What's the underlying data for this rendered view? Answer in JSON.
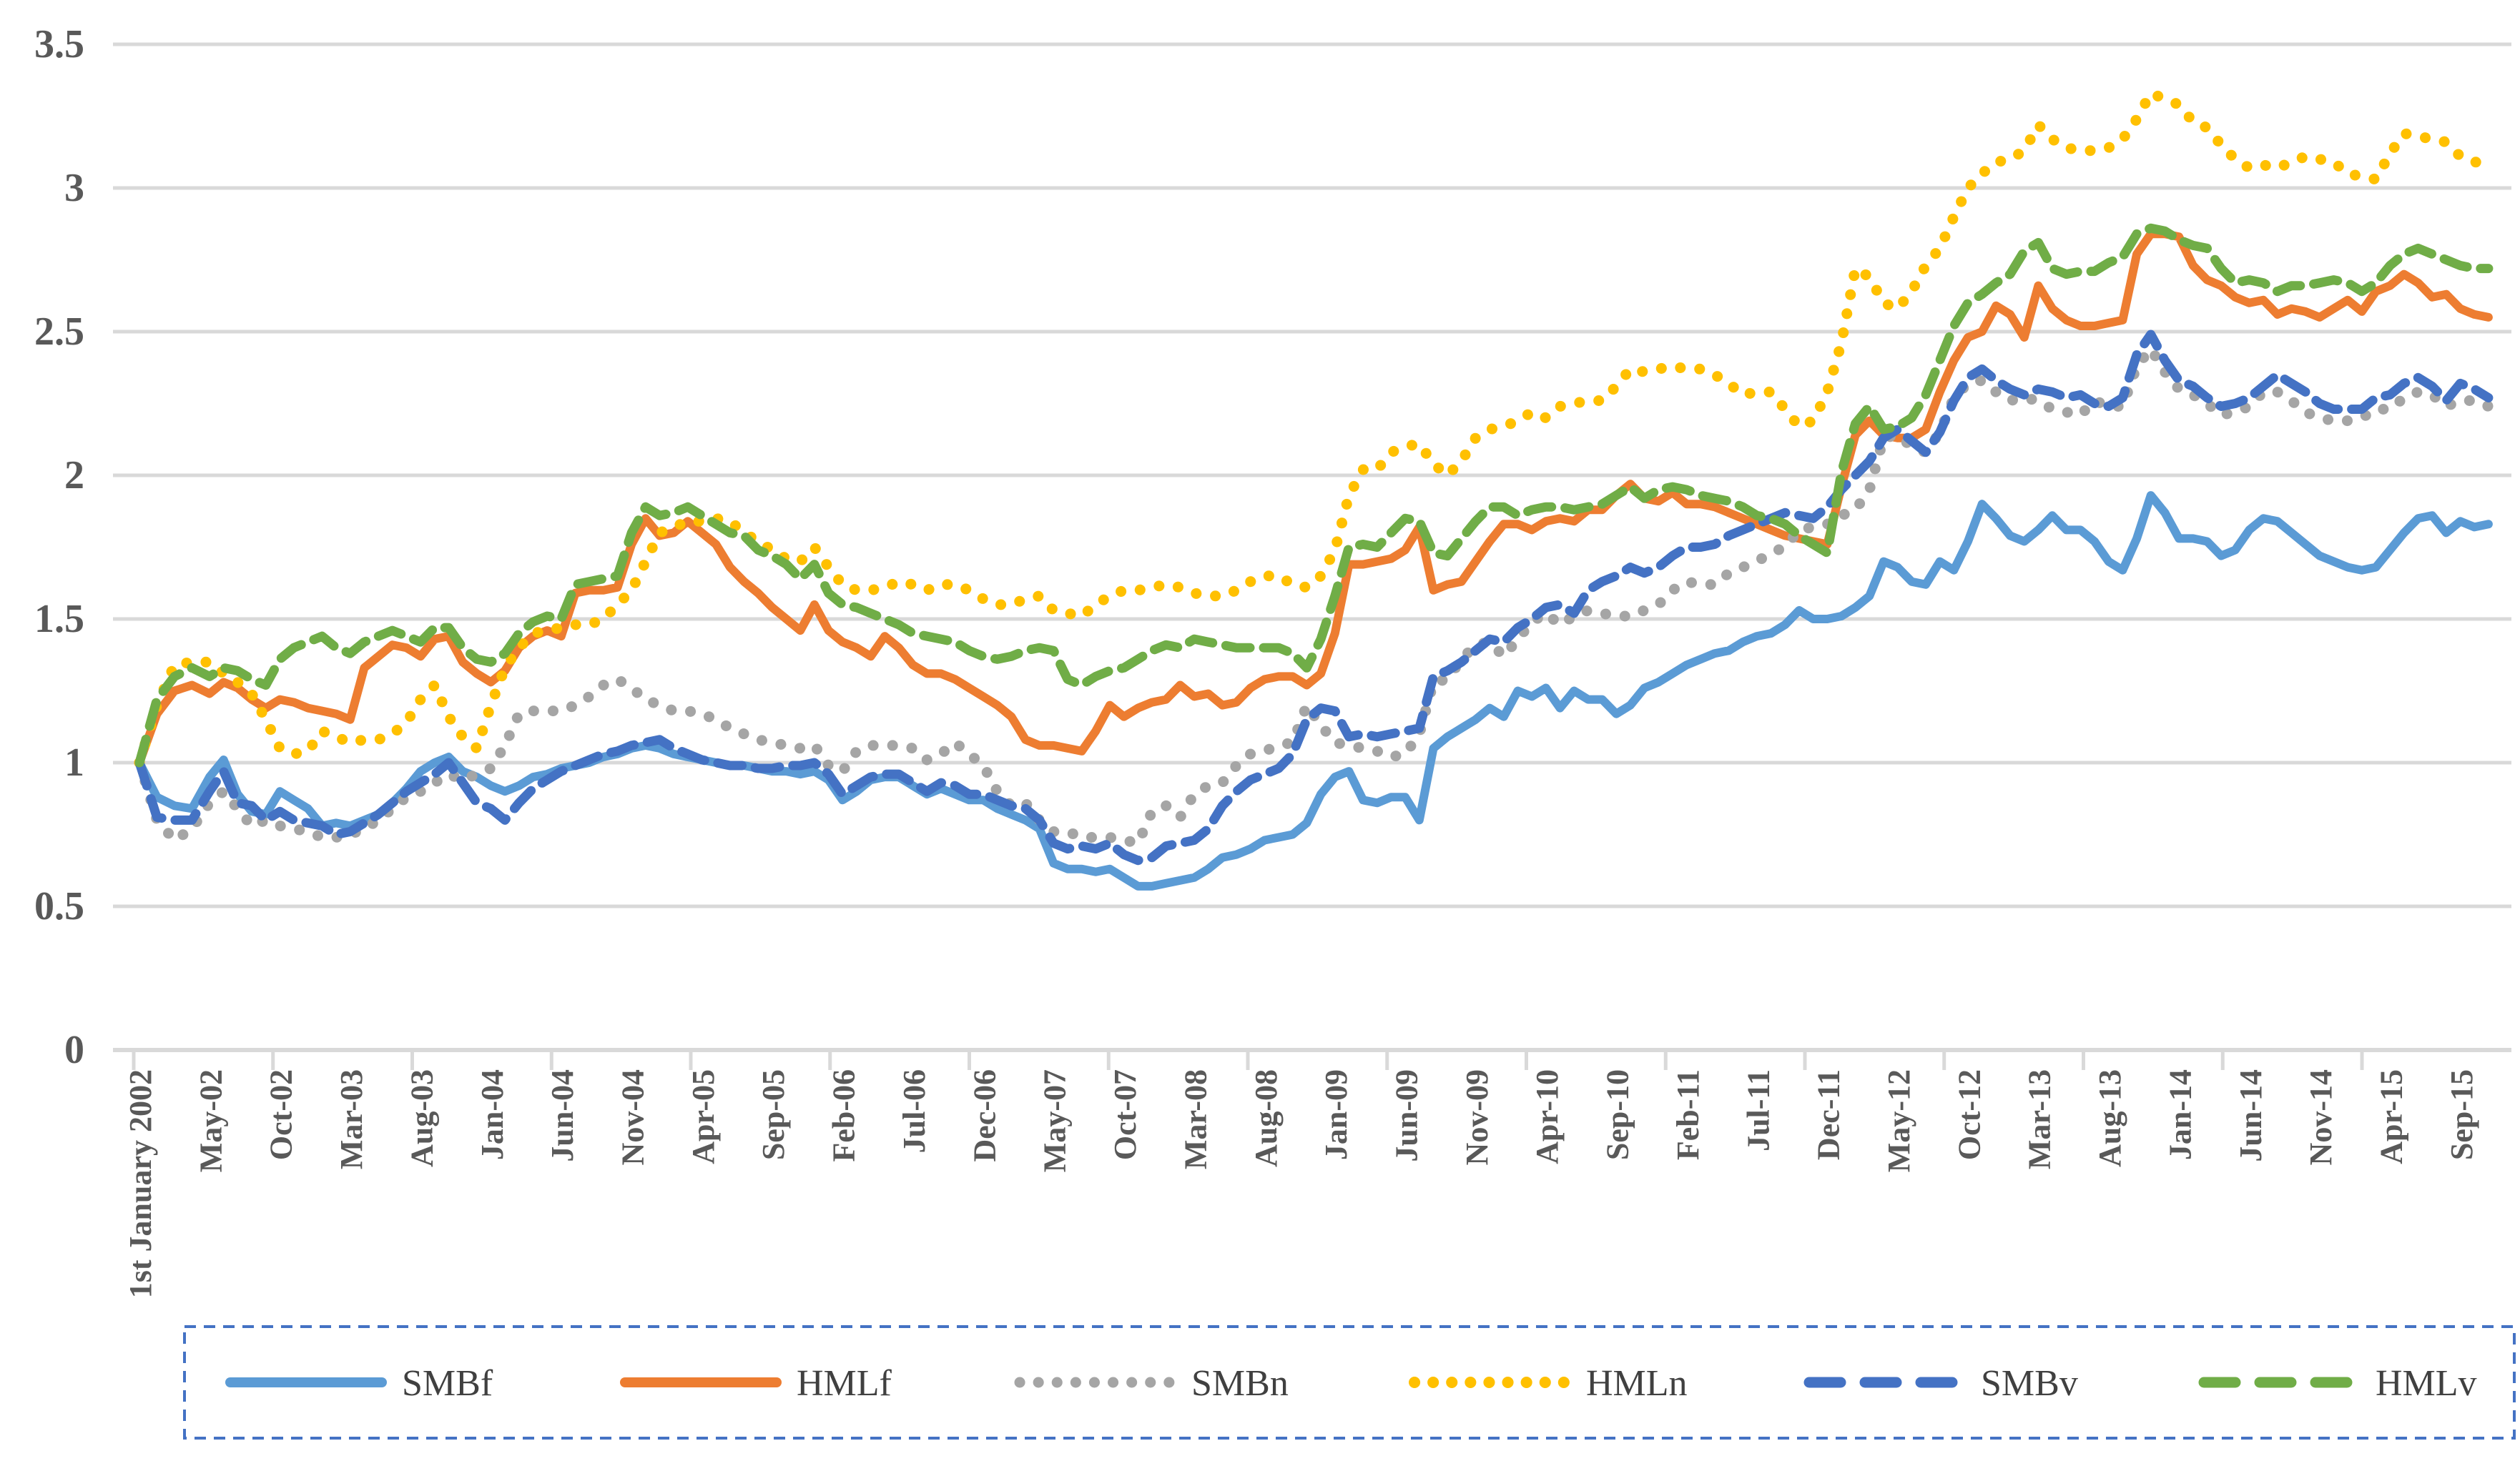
{
  "chart_data": {
    "type": "line",
    "title": "",
    "grid": "horizontal",
    "legend_position": "bottom-outside",
    "x_axis": {
      "start_label": "1st January 2002",
      "months_per_tick": 5,
      "tick_labels": [
        "1st January 2002",
        "May-02",
        "Oct-02",
        "Mar-03",
        "Aug-03",
        "Jan-04",
        "Jun-04",
        "Nov-04",
        "Apr-05",
        "Sep-05",
        "Feb-06",
        "Jul-06",
        "Dec-06",
        "May-07",
        "Oct-07",
        "Mar-08",
        "Aug-08",
        "Jan-09",
        "Jun-09",
        "Nov-09",
        "Apr-10",
        "Sep-10",
        "Feb-11",
        "Jul-11",
        "Dec-11",
        "May-12",
        "Oct-12",
        "Mar-13",
        "Aug-13",
        "Jan-14",
        "Jun-14",
        "Nov-14",
        "Apr-15",
        "Sep-15"
      ]
    },
    "y_axis": {
      "min": 0,
      "max": 3.5,
      "step": 0.5,
      "tick_labels": [
        "0",
        "0.5",
        "1",
        "1.5",
        "2",
        "2.5",
        "3",
        "3.5"
      ]
    },
    "series": [
      {
        "name": "SMBf",
        "color": "#5B9BD5",
        "style": "solid",
        "values": [
          1.0,
          0.88,
          0.85,
          0.84,
          0.95,
          1.01,
          0.89,
          0.83,
          0.82,
          0.9,
          0.87,
          0.84,
          0.78,
          0.79,
          0.78,
          0.8,
          0.82,
          0.86,
          0.91,
          0.97,
          1.0,
          1.02,
          0.97,
          0.95,
          0.92,
          0.9,
          0.92,
          0.95,
          0.96,
          0.98,
          0.99,
          1.0,
          1.02,
          1.03,
          1.05,
          1.06,
          1.05,
          1.03,
          1.02,
          1.01,
          1.0,
          0.99,
          0.99,
          0.98,
          0.97,
          0.97,
          0.96,
          0.97,
          0.94,
          0.87,
          0.9,
          0.94,
          0.95,
          0.95,
          0.92,
          0.89,
          0.91,
          0.89,
          0.87,
          0.87,
          0.84,
          0.82,
          0.8,
          0.77,
          0.65,
          0.63,
          0.63,
          0.62,
          0.63,
          0.6,
          0.57,
          0.57,
          0.58,
          0.59,
          0.6,
          0.63,
          0.67,
          0.68,
          0.7,
          0.73,
          0.74,
          0.75,
          0.79,
          0.89,
          0.95,
          0.97,
          0.87,
          0.86,
          0.88,
          0.88,
          0.8,
          1.05,
          1.09,
          1.12,
          1.15,
          1.19,
          1.16,
          1.25,
          1.23,
          1.26,
          1.19,
          1.25,
          1.22,
          1.22,
          1.17,
          1.2,
          1.26,
          1.28,
          1.31,
          1.34,
          1.36,
          1.38,
          1.39,
          1.42,
          1.44,
          1.45,
          1.48,
          1.53,
          1.5,
          1.5,
          1.51,
          1.54,
          1.58,
          1.7,
          1.68,
          1.63,
          1.62,
          1.7,
          1.67,
          1.77,
          1.9,
          1.85,
          1.79,
          1.77,
          1.81,
          1.86,
          1.81,
          1.81,
          1.77,
          1.7,
          1.67,
          1.78,
          1.93,
          1.87,
          1.78,
          1.78,
          1.77,
          1.72,
          1.74,
          1.81,
          1.85,
          1.84,
          1.8,
          1.76,
          1.72,
          1.7,
          1.68,
          1.67,
          1.68,
          1.74,
          1.8,
          1.85,
          1.86,
          1.8,
          1.84,
          1.82,
          1.83
        ]
      },
      {
        "name": "HMLf",
        "color": "#ED7D31",
        "style": "solid",
        "values": [
          1.0,
          1.17,
          1.25,
          1.27,
          1.24,
          1.28,
          1.26,
          1.22,
          1.19,
          1.22,
          1.21,
          1.19,
          1.18,
          1.17,
          1.15,
          1.33,
          1.37,
          1.41,
          1.4,
          1.37,
          1.43,
          1.44,
          1.35,
          1.31,
          1.28,
          1.32,
          1.4,
          1.44,
          1.46,
          1.44,
          1.59,
          1.6,
          1.6,
          1.61,
          1.76,
          1.85,
          1.79,
          1.8,
          1.84,
          1.8,
          1.76,
          1.68,
          1.63,
          1.59,
          1.54,
          1.5,
          1.46,
          1.55,
          1.46,
          1.42,
          1.4,
          1.37,
          1.44,
          1.4,
          1.34,
          1.31,
          1.31,
          1.29,
          1.26,
          1.23,
          1.2,
          1.16,
          1.08,
          1.06,
          1.06,
          1.05,
          1.04,
          1.11,
          1.2,
          1.16,
          1.19,
          1.21,
          1.22,
          1.27,
          1.23,
          1.24,
          1.2,
          1.21,
          1.26,
          1.29,
          1.3,
          1.3,
          1.27,
          1.31,
          1.45,
          1.69,
          1.69,
          1.7,
          1.71,
          1.74,
          1.82,
          1.6,
          1.62,
          1.63,
          1.7,
          1.77,
          1.83,
          1.83,
          1.81,
          1.84,
          1.85,
          1.84,
          1.88,
          1.88,
          1.93,
          1.97,
          1.92,
          1.91,
          1.94,
          1.9,
          1.9,
          1.89,
          1.87,
          1.85,
          1.83,
          1.81,
          1.79,
          1.78,
          1.77,
          1.76,
          1.96,
          2.14,
          2.19,
          2.14,
          2.13,
          2.13,
          2.16,
          2.29,
          2.4,
          2.48,
          2.5,
          2.59,
          2.56,
          2.48,
          2.66,
          2.58,
          2.54,
          2.52,
          2.52,
          2.53,
          2.54,
          2.77,
          2.84,
          2.84,
          2.83,
          2.73,
          2.68,
          2.66,
          2.62,
          2.6,
          2.61,
          2.56,
          2.58,
          2.57,
          2.55,
          2.58,
          2.61,
          2.57,
          2.64,
          2.66,
          2.7,
          2.67,
          2.62,
          2.63,
          2.58,
          2.56,
          2.55
        ]
      },
      {
        "name": "SMBn",
        "color": "#A5A5A5",
        "style": "dotted",
        "values": [
          1.0,
          0.8,
          0.73,
          0.77,
          0.86,
          0.9,
          0.84,
          0.78,
          0.8,
          0.78,
          0.77,
          0.76,
          0.74,
          0.74,
          0.75,
          0.77,
          0.8,
          0.84,
          0.88,
          0.9,
          0.93,
          0.96,
          0.94,
          0.96,
          0.98,
          1.06,
          1.17,
          1.18,
          1.18,
          1.18,
          1.2,
          1.23,
          1.27,
          1.29,
          1.26,
          1.22,
          1.2,
          1.18,
          1.18,
          1.17,
          1.15,
          1.12,
          1.1,
          1.08,
          1.07,
          1.06,
          1.05,
          1.06,
          0.99,
          0.97,
          1.04,
          1.06,
          1.06,
          1.06,
          1.05,
          1.01,
          1.03,
          1.07,
          1.03,
          0.99,
          0.9,
          0.85,
          0.86,
          0.8,
          0.76,
          0.76,
          0.74,
          0.74,
          0.74,
          0.73,
          0.72,
          0.83,
          0.85,
          0.81,
          0.89,
          0.92,
          0.93,
          0.99,
          1.03,
          1.04,
          1.06,
          1.07,
          1.2,
          1.13,
          1.07,
          1.06,
          1.05,
          1.04,
          1.02,
          1.03,
          1.1,
          1.28,
          1.29,
          1.36,
          1.41,
          1.42,
          1.37,
          1.43,
          1.49,
          1.52,
          1.48,
          1.51,
          1.53,
          1.52,
          1.51,
          1.51,
          1.53,
          1.55,
          1.6,
          1.63,
          1.62,
          1.62,
          1.66,
          1.68,
          1.7,
          1.73,
          1.75,
          1.81,
          1.82,
          1.83,
          1.86,
          1.88,
          1.95,
          2.13,
          2.14,
          2.1,
          2.08,
          2.15,
          2.27,
          2.32,
          2.33,
          2.29,
          2.26,
          2.27,
          2.26,
          2.23,
          2.22,
          2.21,
          2.26,
          2.24,
          2.24,
          2.38,
          2.44,
          2.36,
          2.3,
          2.28,
          2.25,
          2.21,
          2.22,
          2.24,
          2.29,
          2.29,
          2.26,
          2.22,
          2.2,
          2.19,
          2.19,
          2.2,
          2.23,
          2.23,
          2.27,
          2.29,
          2.28,
          2.24,
          2.26,
          2.26,
          2.24
        ]
      },
      {
        "name": "HMLn",
        "color": "#FFC000",
        "style": "dotted",
        "values": [
          1.0,
          1.2,
          1.34,
          1.35,
          1.35,
          1.31,
          1.28,
          1.24,
          1.15,
          1.05,
          1.03,
          1.04,
          1.11,
          1.09,
          1.07,
          1.08,
          1.08,
          1.1,
          1.14,
          1.22,
          1.27,
          1.16,
          1.09,
          1.05,
          1.2,
          1.33,
          1.4,
          1.45,
          1.46,
          1.47,
          1.48,
          1.48,
          1.5,
          1.55,
          1.6,
          1.7,
          1.8,
          1.82,
          1.84,
          1.84,
          1.85,
          1.84,
          1.8,
          1.77,
          1.74,
          1.71,
          1.7,
          1.75,
          1.68,
          1.62,
          1.6,
          1.6,
          1.61,
          1.63,
          1.62,
          1.6,
          1.62,
          1.62,
          1.6,
          1.57,
          1.55,
          1.55,
          1.57,
          1.58,
          1.53,
          1.52,
          1.51,
          1.55,
          1.58,
          1.6,
          1.6,
          1.61,
          1.62,
          1.61,
          1.59,
          1.58,
          1.58,
          1.6,
          1.63,
          1.65,
          1.65,
          1.62,
          1.61,
          1.65,
          1.74,
          1.93,
          2.02,
          2.02,
          2.08,
          2.1,
          2.11,
          2.04,
          2.0,
          2.05,
          2.13,
          2.16,
          2.17,
          2.19,
          2.22,
          2.2,
          2.24,
          2.25,
          2.26,
          2.26,
          2.31,
          2.37,
          2.36,
          2.37,
          2.38,
          2.37,
          2.37,
          2.35,
          2.32,
          2.28,
          2.29,
          2.29,
          2.23,
          2.17,
          2.19,
          2.29,
          2.46,
          2.72,
          2.69,
          2.6,
          2.58,
          2.64,
          2.73,
          2.79,
          2.9,
          3.0,
          3.05,
          3.09,
          3.1,
          3.13,
          3.22,
          3.17,
          3.14,
          3.13,
          3.13,
          3.14,
          3.17,
          3.24,
          3.33,
          3.31,
          3.29,
          3.23,
          3.21,
          3.15,
          3.1,
          3.07,
          3.08,
          3.07,
          3.09,
          3.11,
          3.1,
          3.09,
          3.05,
          3.04,
          3.03,
          3.12,
          3.19,
          3.18,
          3.17,
          3.16,
          3.11,
          3.09,
          3.09
        ]
      },
      {
        "name": "SMBv",
        "color": "#4472C4",
        "style": "dashed",
        "values": [
          1.0,
          0.81,
          0.8,
          0.8,
          0.9,
          0.97,
          0.86,
          0.85,
          0.8,
          0.83,
          0.8,
          0.79,
          0.78,
          0.75,
          0.76,
          0.79,
          0.82,
          0.86,
          0.9,
          0.93,
          0.96,
          1.0,
          0.93,
          0.86,
          0.84,
          0.8,
          0.86,
          0.91,
          0.94,
          0.97,
          0.99,
          1.01,
          1.03,
          1.04,
          1.06,
          1.07,
          1.08,
          1.05,
          1.03,
          1.01,
          1.0,
          0.99,
          0.99,
          0.98,
          0.98,
          0.99,
          0.99,
          1.0,
          0.96,
          0.89,
          0.92,
          0.95,
          0.96,
          0.96,
          0.93,
          0.9,
          0.93,
          0.92,
          0.89,
          0.89,
          0.87,
          0.85,
          0.84,
          0.8,
          0.72,
          0.7,
          0.71,
          0.7,
          0.72,
          0.68,
          0.66,
          0.67,
          0.71,
          0.72,
          0.73,
          0.77,
          0.85,
          0.9,
          0.94,
          0.96,
          0.98,
          1.03,
          1.15,
          1.19,
          1.18,
          1.09,
          1.1,
          1.09,
          1.1,
          1.11,
          1.12,
          1.3,
          1.32,
          1.35,
          1.39,
          1.43,
          1.42,
          1.47,
          1.5,
          1.54,
          1.55,
          1.52,
          1.6,
          1.63,
          1.65,
          1.68,
          1.66,
          1.68,
          1.72,
          1.75,
          1.75,
          1.76,
          1.79,
          1.81,
          1.83,
          1.85,
          1.87,
          1.86,
          1.85,
          1.89,
          1.95,
          2.0,
          2.05,
          2.13,
          2.16,
          2.12,
          2.08,
          2.15,
          2.26,
          2.34,
          2.37,
          2.33,
          2.3,
          2.28,
          2.3,
          2.29,
          2.27,
          2.28,
          2.25,
          2.24,
          2.27,
          2.42,
          2.49,
          2.4,
          2.33,
          2.31,
          2.27,
          2.24,
          2.25,
          2.27,
          2.31,
          2.35,
          2.32,
          2.29,
          2.25,
          2.23,
          2.23,
          2.23,
          2.27,
          2.28,
          2.32,
          2.34,
          2.31,
          2.26,
          2.32,
          2.3,
          2.27
        ]
      },
      {
        "name": "HMLv",
        "color": "#70AD47",
        "style": "dashed",
        "values": [
          1.0,
          1.22,
          1.3,
          1.33,
          1.3,
          1.33,
          1.32,
          1.29,
          1.27,
          1.36,
          1.4,
          1.42,
          1.44,
          1.4,
          1.38,
          1.42,
          1.44,
          1.46,
          1.44,
          1.42,
          1.47,
          1.47,
          1.4,
          1.36,
          1.35,
          1.38,
          1.45,
          1.49,
          1.51,
          1.5,
          1.62,
          1.63,
          1.64,
          1.65,
          1.8,
          1.89,
          1.86,
          1.87,
          1.89,
          1.86,
          1.83,
          1.8,
          1.79,
          1.74,
          1.72,
          1.69,
          1.64,
          1.69,
          1.59,
          1.55,
          1.54,
          1.52,
          1.5,
          1.48,
          1.45,
          1.44,
          1.43,
          1.42,
          1.39,
          1.37,
          1.36,
          1.37,
          1.39,
          1.4,
          1.39,
          1.29,
          1.27,
          1.3,
          1.32,
          1.33,
          1.36,
          1.39,
          1.41,
          1.4,
          1.43,
          1.42,
          1.41,
          1.4,
          1.4,
          1.4,
          1.4,
          1.38,
          1.33,
          1.43,
          1.58,
          1.75,
          1.76,
          1.75,
          1.8,
          1.85,
          1.84,
          1.73,
          1.72,
          1.78,
          1.84,
          1.89,
          1.89,
          1.86,
          1.88,
          1.89,
          1.89,
          1.88,
          1.89,
          1.9,
          1.93,
          1.96,
          1.92,
          1.95,
          1.96,
          1.95,
          1.93,
          1.92,
          1.91,
          1.89,
          1.86,
          1.85,
          1.83,
          1.79,
          1.76,
          1.73,
          2.01,
          2.18,
          2.24,
          2.16,
          2.17,
          2.2,
          2.28,
          2.4,
          2.52,
          2.6,
          2.63,
          2.67,
          2.7,
          2.78,
          2.81,
          2.72,
          2.7,
          2.71,
          2.71,
          2.74,
          2.76,
          2.84,
          2.86,
          2.85,
          2.82,
          2.8,
          2.79,
          2.72,
          2.67,
          2.68,
          2.67,
          2.64,
          2.66,
          2.66,
          2.67,
          2.68,
          2.67,
          2.64,
          2.67,
          2.73,
          2.77,
          2.79,
          2.77,
          2.75,
          2.73,
          2.72,
          2.72
        ]
      }
    ]
  },
  "legend": {
    "border_color": "#4472C4",
    "items": [
      "SMBf",
      "HMLf",
      "SMBn",
      "HMLn",
      "SMBv",
      "HMLv"
    ]
  },
  "colors": {
    "background": "#FFFFFF",
    "gridline": "#D9D9D9",
    "axis_line": "#D9D9D9",
    "tick_label": "#595959",
    "legend_text": "#404040"
  }
}
